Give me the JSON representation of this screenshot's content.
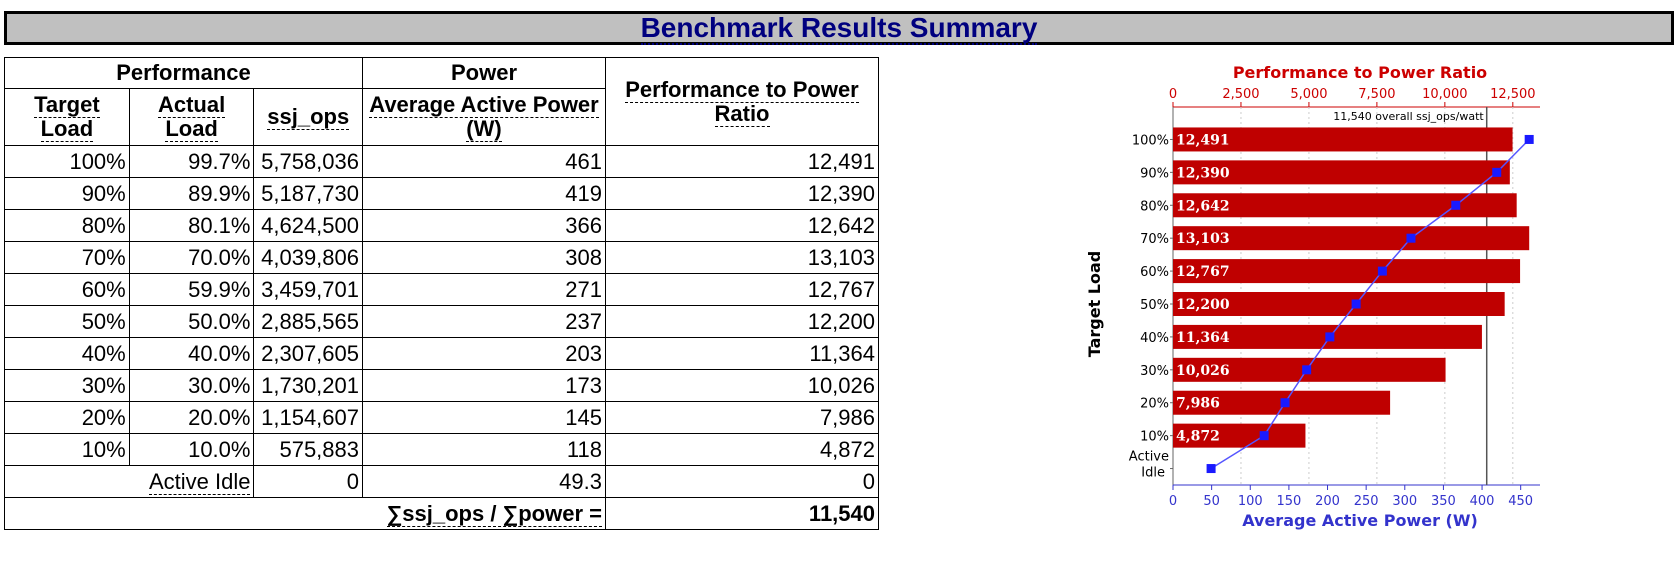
{
  "title": "Benchmark Results Summary",
  "table": {
    "group_performance": "Performance",
    "group_power": "Power",
    "col_ratio": "Performance to Power Ratio",
    "col_target": "Target Load",
    "col_actual": "Actual Load",
    "col_ops": "ssj_ops",
    "col_power": "Average Active Power (W)",
    "rows": [
      {
        "target": "100%",
        "actual": "99.7%",
        "ops": "5,758,036",
        "power": "461",
        "ratio": "12,491"
      },
      {
        "target": "90%",
        "actual": "89.9%",
        "ops": "5,187,730",
        "power": "419",
        "ratio": "12,390"
      },
      {
        "target": "80%",
        "actual": "80.1%",
        "ops": "4,624,500",
        "power": "366",
        "ratio": "12,642"
      },
      {
        "target": "70%",
        "actual": "70.0%",
        "ops": "4,039,806",
        "power": "308",
        "ratio": "13,103"
      },
      {
        "target": "60%",
        "actual": "59.9%",
        "ops": "3,459,701",
        "power": "271",
        "ratio": "12,767"
      },
      {
        "target": "50%",
        "actual": "50.0%",
        "ops": "2,885,565",
        "power": "237",
        "ratio": "12,200"
      },
      {
        "target": "40%",
        "actual": "40.0%",
        "ops": "2,307,605",
        "power": "203",
        "ratio": "11,364"
      },
      {
        "target": "30%",
        "actual": "30.0%",
        "ops": "1,730,201",
        "power": "173",
        "ratio": "10,026"
      },
      {
        "target": "20%",
        "actual": "20.0%",
        "ops": "1,154,607",
        "power": "145",
        "ratio": "7,986"
      },
      {
        "target": "10%",
        "actual": "10.0%",
        "ops": "575,883",
        "power": "118",
        "ratio": "4,872"
      }
    ],
    "idle": {
      "label": "Active Idle",
      "ops": "0",
      "power": "49.3",
      "ratio": "0"
    },
    "total": {
      "label": "∑ssj_ops / ∑power =",
      "value": "11,540"
    }
  },
  "chart_data": {
    "type": "bar",
    "title": "Performance to Power Ratio",
    "xlabel": "Average Active Power (W)",
    "ylabel": "Target Load",
    "top_axis_ticks": [
      "0",
      "2,500",
      "5,000",
      "7,500",
      "10,000",
      "12,500"
    ],
    "top_axis_range": [
      0,
      13500
    ],
    "bottom_axis_ticks": [
      "0",
      "50",
      "100",
      "150",
      "200",
      "250",
      "300",
      "350",
      "400",
      "450"
    ],
    "bottom_axis_range": [
      0,
      475
    ],
    "categories": [
      "100%",
      "90%",
      "80%",
      "70%",
      "60%",
      "50%",
      "40%",
      "30%",
      "20%",
      "10%",
      "Active Idle"
    ],
    "ratio_values": [
      12491,
      12390,
      12642,
      13103,
      12767,
      12200,
      11364,
      10026,
      7986,
      4872
    ],
    "ratio_labels": [
      "12,491",
      "12,390",
      "12,642",
      "13,103",
      "12,767",
      "12,200",
      "11,364",
      "10,026",
      "7,986",
      "4,872"
    ],
    "power_values": [
      461,
      419,
      366,
      308,
      271,
      237,
      203,
      173,
      145,
      118,
      49.3
    ],
    "overall_value": 11540,
    "overall_label": "11,540 overall ssj_ops/watt",
    "colors": {
      "bar": "#bf0000",
      "line": "#5555ff",
      "marker": "#1a1aff",
      "title": "#cc0000",
      "xlabel": "#3333cc"
    }
  }
}
